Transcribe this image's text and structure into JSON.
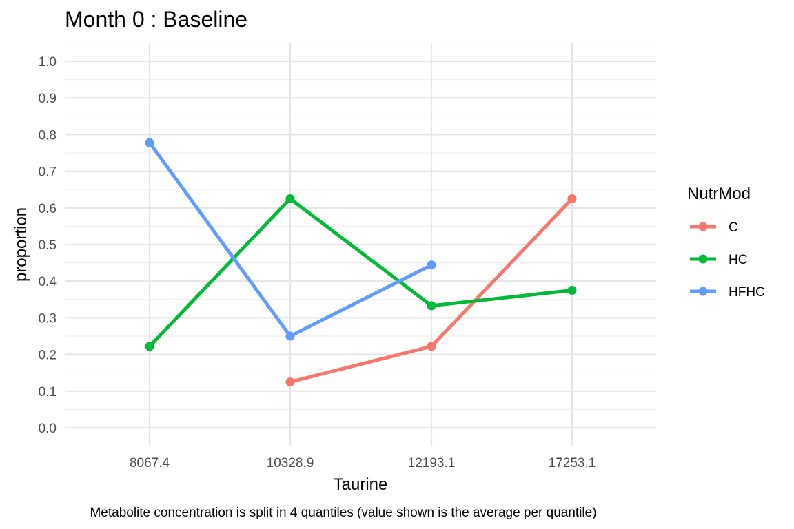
{
  "chart_data": {
    "type": "line",
    "title": "Month 0 : Baseline",
    "xlabel": "Taurine",
    "ylabel": "proportion",
    "caption": "Metabolite concentration is split in 4 quantiles (value shown is the average per quantile)",
    "categories": [
      "8067.4",
      "10328.9",
      "12193.1",
      "17253.1"
    ],
    "ylim": [
      0,
      1
    ],
    "yticks": [
      "0.0",
      "0.1",
      "0.2",
      "0.3",
      "0.4",
      "0.5",
      "0.6",
      "0.7",
      "0.8",
      "0.9",
      "1.0"
    ],
    "grid": true,
    "legend": {
      "title": "NutrMod",
      "position": "right"
    },
    "series": [
      {
        "name": "C",
        "color": "#F8766D",
        "values": [
          null,
          0.125,
          0.222,
          0.625
        ]
      },
      {
        "name": "HC",
        "color": "#00BA38",
        "values": [
          0.222,
          0.625,
          0.333,
          0.375
        ]
      },
      {
        "name": "HFHC",
        "color": "#619CFF",
        "values": [
          0.778,
          0.25,
          0.444,
          null
        ]
      }
    ]
  }
}
